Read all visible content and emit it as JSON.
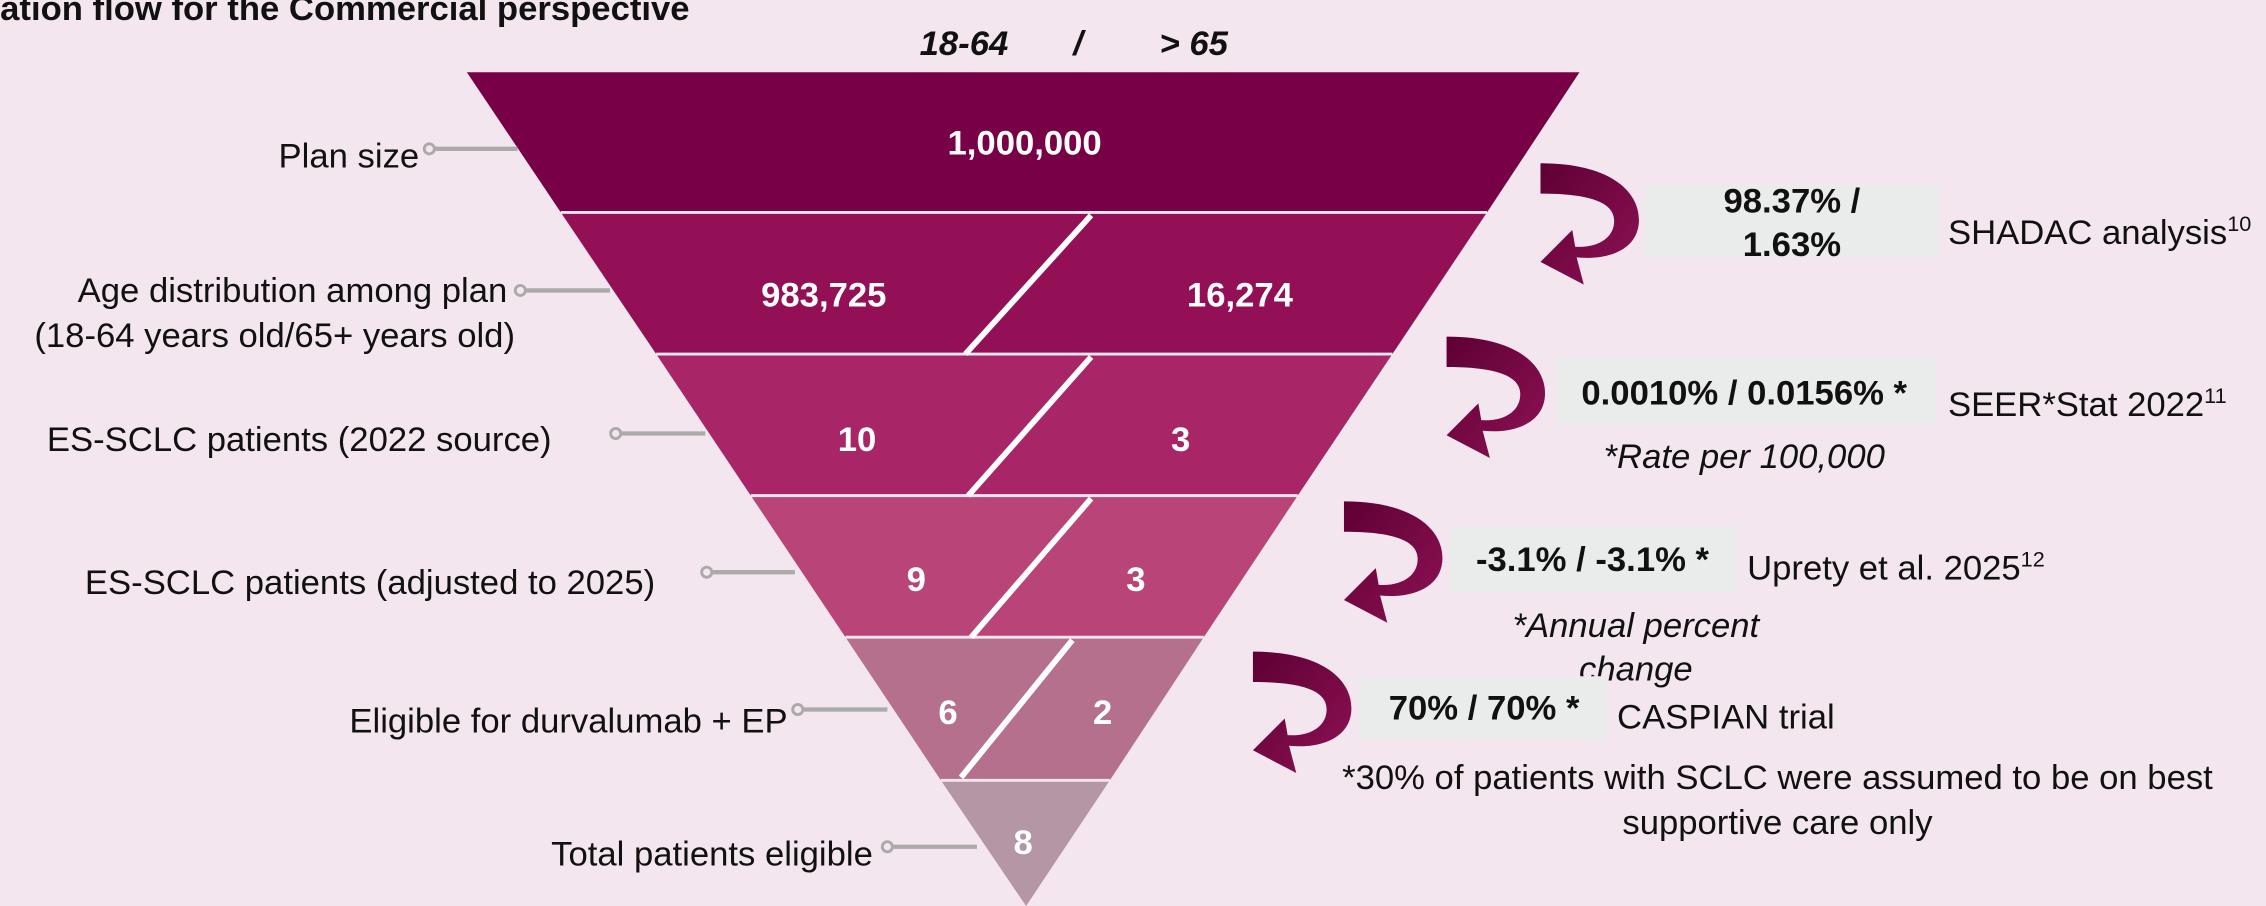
{
  "title": "ation flow for the Commercial perspective",
  "header": {
    "left": "18-64",
    "separator": "/",
    "right": "> 65"
  },
  "levels": [
    {
      "label": [
        "Plan size"
      ],
      "values": [
        "1,000,000"
      ]
    },
    {
      "label": [
        "Age distribution among plan",
        "(18-64 years old/65+ years old)"
      ],
      "values": [
        "983,725",
        "16,274"
      ]
    },
    {
      "label": [
        "ES-SCLC patients (2022 source)"
      ],
      "values": [
        "10",
        "3"
      ]
    },
    {
      "label": [
        "ES-SCLC patients (adjusted to 2025)"
      ],
      "values": [
        "9",
        "3"
      ]
    },
    {
      "label": [
        "Eligible for durvalumab + EP"
      ],
      "values": [
        "6",
        "2"
      ]
    },
    {
      "label": [
        "Total patients eligible"
      ],
      "values": [
        "8"
      ]
    }
  ],
  "steps": [
    {
      "value": [
        "98.37% /",
        "1.63%"
      ],
      "source": "SHADAC analysis",
      "ref": "10"
    },
    {
      "value": [
        "0.0010% / 0.0156% *"
      ],
      "source": "SEER*Stat 2022",
      "ref": "11",
      "note": [
        "*Rate per 100,000"
      ]
    },
    {
      "value": [
        "-3.1% / -3.1% *"
      ],
      "source": "Uprety et al. 2025",
      "ref": "12",
      "note": [
        "*Annual percent",
        "change"
      ]
    },
    {
      "value": [
        "70% / 70% *"
      ],
      "source": "CASPIAN trial",
      "note": [
        "*30% of patients with SCLC were assumed to be on best",
        "supportive care only"
      ]
    }
  ]
}
